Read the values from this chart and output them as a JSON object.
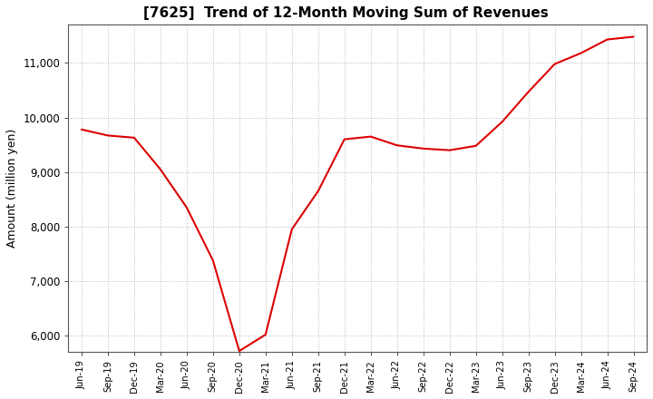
{
  "title": "[7625]  Trend of 12-Month Moving Sum of Revenues",
  "ylabel": "Amount (million yen)",
  "line_color": "#dd0000",
  "background_color": "#ffffff",
  "plot_bg_color": "#ffffff",
  "grid_color": "#bbbbbb",
  "ylim": [
    5700,
    11700
  ],
  "yticks": [
    6000,
    7000,
    8000,
    9000,
    10000,
    11000
  ],
  "labels": [
    "Jun-19",
    "Sep-19",
    "Dec-19",
    "Mar-20",
    "Jun-20",
    "Sep-20",
    "Dec-20",
    "Mar-21",
    "Jun-21",
    "Sep-21",
    "Dec-21",
    "Mar-22",
    "Jun-22",
    "Sep-22",
    "Dec-22",
    "Mar-23",
    "Jun-23",
    "Sep-23",
    "Dec-23",
    "Mar-24",
    "Jun-24",
    "Sep-24"
  ],
  "values": [
    9780,
    9670,
    9630,
    9050,
    8350,
    7380,
    5720,
    6020,
    7950,
    8650,
    9600,
    9650,
    9490,
    9430,
    9400,
    9480,
    9920,
    10470,
    10980,
    11180,
    11430,
    11480
  ]
}
